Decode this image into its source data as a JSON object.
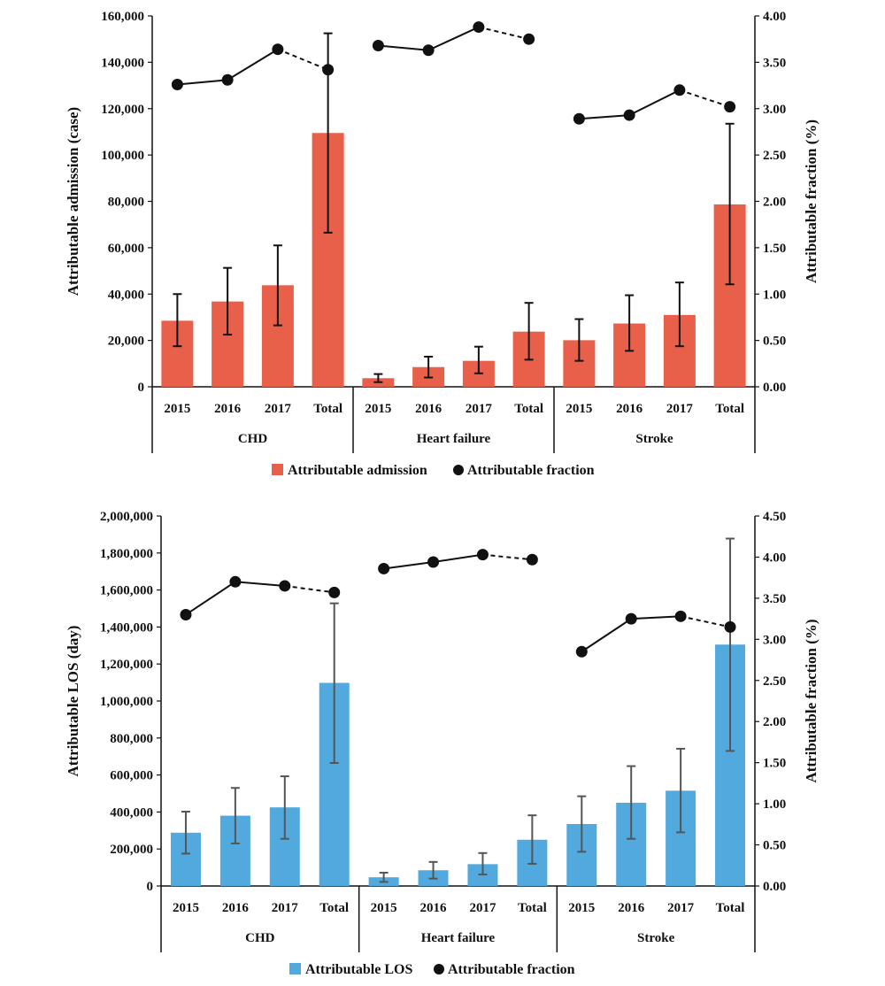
{
  "chart_data": [
    {
      "type": "bar",
      "categories": [
        "CHD",
        "Heart failure",
        "Stroke"
      ],
      "subcategories": [
        "2015",
        "2016",
        "2017",
        "Total"
      ],
      "ylabel": "Attributable admission (case)",
      "y2label": "Attributable fraction (%)",
      "ylim": [
        0,
        160000
      ],
      "ytick_step": 20000,
      "y_tick_labels": [
        "0",
        "20,000",
        "40,000",
        "60,000",
        "80,000",
        "100,000",
        "120,000",
        "140,000",
        "160,000"
      ],
      "y2lim": [
        0,
        4
      ],
      "y2_tick_labels": [
        "0.00",
        "0.50",
        "1.00",
        "1.50",
        "2.00",
        "2.50",
        "3.00",
        "3.50",
        "4.00"
      ],
      "bar_color": "#E8604A",
      "error_color": "#111111",
      "line_color": "#111111",
      "legend": [
        "Attributable admission",
        "Attributable fraction"
      ],
      "legend_position": "bottom",
      "grid": false,
      "series": [
        {
          "name": "Attributable admission",
          "values": [
            [
              28500,
              36800,
              43800,
              109500
            ],
            [
              3700,
              8500,
              11200,
              23800
            ],
            [
              20100,
              27300,
              31000,
              78700
            ]
          ],
          "error_low": [
            [
              17500,
              22500,
              26500,
              66500
            ],
            [
              2000,
              4000,
              5800,
              11700
            ],
            [
              11200,
              15500,
              17500,
              44200
            ]
          ],
          "error_high": [
            [
              40000,
              51300,
              61000,
              152500
            ],
            [
              5500,
              13000,
              17300,
              36200
            ],
            [
              29200,
              39500,
              45000,
              113500
            ]
          ]
        },
        {
          "name": "Attributable fraction",
          "axis": "right",
          "values": [
            [
              3.26,
              3.31,
              3.64,
              3.42
            ],
            [
              3.68,
              3.63,
              3.88,
              3.75
            ],
            [
              2.89,
              2.93,
              3.2,
              3.02
            ]
          ]
        }
      ]
    },
    {
      "type": "bar",
      "categories": [
        "CHD",
        "Heart failure",
        "Stroke"
      ],
      "subcategories": [
        "2015",
        "2016",
        "2017",
        "Total"
      ],
      "ylabel": "Attributable LOS (day)",
      "y2label": "Attributable fraction (%)",
      "ylim": [
        0,
        2000000
      ],
      "ytick_step": 200000,
      "y_tick_labels": [
        "0",
        "200,000",
        "400,000",
        "600,000",
        "800,000",
        "1,000,000",
        "1,200,000",
        "1,400,000",
        "1,600,000",
        "1,800,000",
        "2,000,000"
      ],
      "y2lim": [
        0,
        4.5
      ],
      "y2_tick_labels": [
        "0.00",
        "0.50",
        "1.00",
        "1.50",
        "2.00",
        "2.50",
        "3.00",
        "3.50",
        "4.00",
        "4.50"
      ],
      "bar_color": "#52A9DE",
      "error_color": "#555555",
      "line_color": "#111111",
      "legend": [
        "Attributable LOS",
        "Attributable fraction"
      ],
      "legend_position": "bottom",
      "grid": false,
      "series": [
        {
          "name": "Attributable LOS",
          "values": [
            [
              288000,
              380000,
              425000,
              1098000
            ],
            [
              47000,
              85000,
              118000,
              250000
            ],
            [
              335000,
              450000,
              515000,
              1305000
            ]
          ],
          "error_low": [
            [
              175000,
              230000,
              255000,
              665000
            ],
            [
              22000,
              40000,
              62000,
              120000
            ],
            [
              185000,
              255000,
              290000,
              730000
            ]
          ],
          "error_high": [
            [
              402000,
              530000,
              593000,
              1528000
            ],
            [
              72000,
              130000,
              178000,
              382000
            ],
            [
              485000,
              648000,
              742000,
              1878000
            ]
          ]
        },
        {
          "name": "Attributable fraction",
          "axis": "right",
          "values": [
            [
              3.3,
              3.7,
              3.65,
              3.57
            ],
            [
              3.86,
              3.94,
              4.03,
              3.97
            ],
            [
              2.85,
              3.25,
              3.28,
              3.15
            ]
          ]
        }
      ]
    }
  ]
}
